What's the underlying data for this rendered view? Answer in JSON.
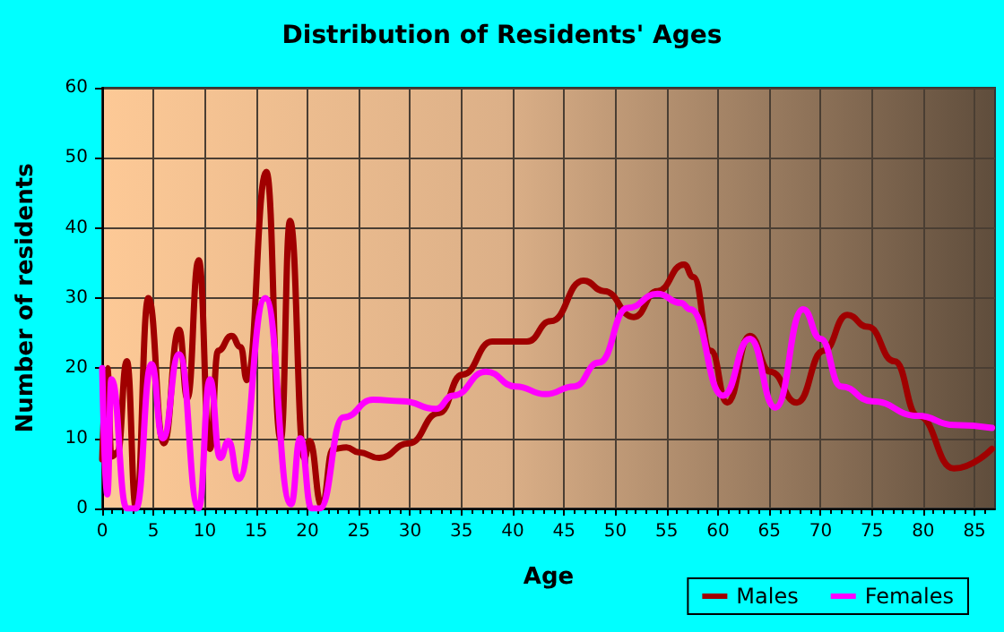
{
  "chart_data": {
    "type": "line",
    "title": "Distribution of Residents' Ages",
    "xlabel": "Age",
    "ylabel": "Number of residents",
    "xlim": [
      0,
      87
    ],
    "xticks": [
      0,
      5,
      10,
      15,
      20,
      25,
      30,
      35,
      40,
      45,
      50,
      55,
      60,
      65,
      70,
      75,
      80,
      85
    ],
    "ylim": [
      0,
      60
    ],
    "yticks": [
      0,
      10,
      20,
      30,
      40,
      50,
      60
    ],
    "grid": true,
    "legend": "bottom right",
    "marker": "none",
    "line_style": "solid",
    "series": [
      {
        "name": "Males",
        "color": "#a00000",
        "x": [
          0,
          0.5,
          0.9,
          1.5,
          2.4,
          3.3,
          4.5,
          6,
          7.5,
          8.3,
          9.4,
          10.5,
          11.3,
          12.6,
          13.5,
          14.1,
          16,
          17.4,
          18.3,
          19.7,
          20.2,
          21.4,
          22.5,
          23.8,
          25,
          27,
          29.9,
          32.8,
          35.1,
          38,
          41.4,
          43.7,
          46.9,
          48.9,
          51.8,
          54.1,
          56.7,
          57.6,
          59.3,
          60.9,
          63.1,
          65.1,
          67.7,
          70.3,
          72.6,
          74.6,
          77.2,
          79.5,
          83,
          86.7
        ],
        "values": [
          7,
          20,
          7.4,
          8,
          21,
          0,
          30,
          9.3,
          25.5,
          15.7,
          35.4,
          8.5,
          22.5,
          24.6,
          23,
          18.3,
          48,
          9.8,
          41,
          7.2,
          9.6,
          0.4,
          8.5,
          8.7,
          8,
          7.2,
          9.3,
          13.6,
          19.1,
          23.8,
          23.8,
          26.7,
          32.5,
          31,
          27.3,
          31,
          34.8,
          33,
          22.5,
          15.1,
          24.6,
          19.5,
          15.1,
          22.5,
          27.6,
          25.9,
          21,
          13.2,
          5.7,
          8.5
        ]
      },
      {
        "name": "Females",
        "color": "#ff00ff",
        "x": [
          0,
          0.5,
          0.9,
          2.4,
          3.3,
          4.8,
          5.9,
          7.5,
          9.4,
          10.5,
          11.5,
          12.3,
          13.3,
          15.9,
          18.4,
          19.3,
          20.4,
          21.2,
          23.5,
          26.4,
          29.3,
          32.5,
          34.2,
          37.4,
          40.3,
          43.2,
          46,
          48.4,
          51.2,
          54.1,
          56.4,
          57.3,
          60.5,
          63.1,
          65.6,
          68.3,
          70,
          72,
          75,
          79.5,
          83,
          86.7
        ],
        "values": [
          20,
          2,
          18.4,
          0,
          0,
          20.6,
          10,
          22,
          0,
          18.4,
          7.2,
          9.6,
          4.2,
          30,
          0.6,
          10,
          0,
          0,
          13,
          15.5,
          15.3,
          14.2,
          16.1,
          19.5,
          17.4,
          16.3,
          17.4,
          20.8,
          28.6,
          30.6,
          29.3,
          28.4,
          16.1,
          24.2,
          14.4,
          28.4,
          24.2,
          17.4,
          15.3,
          13.2,
          11.9,
          11.5
        ]
      }
    ]
  }
}
